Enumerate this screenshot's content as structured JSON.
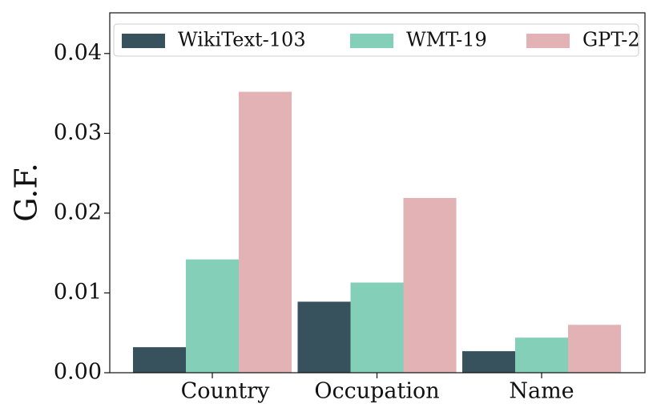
{
  "chart_data": {
    "type": "bar",
    "y_label": "G.F.",
    "categories": [
      "Country",
      "Occupation",
      "Name"
    ],
    "series": [
      {
        "name": "WikiText-103",
        "color": "#37525c",
        "values": [
          0.0032,
          0.0089,
          0.0027
        ]
      },
      {
        "name": "WMT-19",
        "color": "#84cfb8",
        "values": [
          0.0142,
          0.0113,
          0.0044
        ]
      },
      {
        "name": "GPT-2",
        "color": "#e2b2b4",
        "values": [
          0.0352,
          0.0219,
          0.006
        ]
      }
    ],
    "ylim": [
      0,
      0.0451
    ],
    "yticks": [
      {
        "value": 0,
        "label": "0.00"
      },
      {
        "value": 0.01,
        "label": "0.01"
      },
      {
        "value": 0.02,
        "label": "0.02"
      },
      {
        "value": 0.03,
        "label": "0.03"
      },
      {
        "value": 0.04,
        "label": "0.04"
      }
    ],
    "grid": false,
    "legend": "top-left"
  }
}
